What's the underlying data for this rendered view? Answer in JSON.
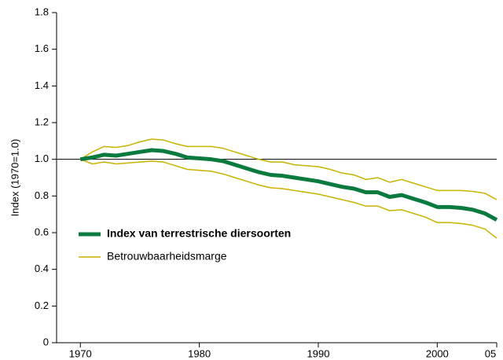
{
  "chart_data": {
    "type": "line",
    "ylabel": "Index (1970=1.0)",
    "x": [
      1970,
      1971,
      1972,
      1973,
      1974,
      1975,
      1976,
      1977,
      1978,
      1979,
      1980,
      1981,
      1982,
      1983,
      1984,
      1985,
      1986,
      1987,
      1988,
      1989,
      1990,
      1991,
      1992,
      1993,
      1994,
      1995,
      1996,
      1997,
      1998,
      1999,
      2000,
      2001,
      2002,
      2003,
      2004,
      2005
    ],
    "series": [
      {
        "name": "Index van terrestrische diersoorten",
        "color": "#0a7a3f",
        "values": [
          1.0,
          1.01,
          1.025,
          1.02,
          1.03,
          1.04,
          1.05,
          1.045,
          1.03,
          1.01,
          1.005,
          1.0,
          0.99,
          0.97,
          0.95,
          0.93,
          0.915,
          0.91,
          0.9,
          0.89,
          0.88,
          0.865,
          0.85,
          0.84,
          0.82,
          0.82,
          0.795,
          0.805,
          0.785,
          0.765,
          0.74,
          0.74,
          0.735,
          0.725,
          0.705,
          0.67
        ]
      }
    ],
    "confidence_band": {
      "name": "Betrouwbaarheidsmarge",
      "color": "#c9b200",
      "upper": [
        1.0,
        1.04,
        1.07,
        1.065,
        1.075,
        1.095,
        1.11,
        1.105,
        1.085,
        1.07,
        1.07,
        1.07,
        1.06,
        1.04,
        1.02,
        1.0,
        0.985,
        0.985,
        0.97,
        0.965,
        0.96,
        0.945,
        0.925,
        0.915,
        0.89,
        0.9,
        0.875,
        0.89,
        0.87,
        0.85,
        0.83,
        0.83,
        0.83,
        0.825,
        0.815,
        0.78
      ],
      "lower": [
        1.0,
        0.975,
        0.985,
        0.975,
        0.98,
        0.985,
        0.99,
        0.985,
        0.965,
        0.945,
        0.94,
        0.935,
        0.92,
        0.9,
        0.88,
        0.86,
        0.845,
        0.84,
        0.83,
        0.82,
        0.81,
        0.795,
        0.78,
        0.765,
        0.745,
        0.745,
        0.72,
        0.725,
        0.705,
        0.685,
        0.655,
        0.655,
        0.65,
        0.64,
        0.62,
        0.57
      ]
    },
    "reference_line": {
      "value": 1,
      "color": "#000000"
    },
    "xlim": [
      1968,
      2005
    ],
    "xticks": [
      1970,
      1980,
      1990,
      2000,
      {
        "value": 2005,
        "label": "05"
      }
    ],
    "ylim": [
      0,
      1.8
    ],
    "yticks": [
      0,
      0.2,
      0.4,
      0.6,
      0.8,
      {
        "value": 1,
        "label": "1.0"
      },
      1.2,
      1.4,
      1.6,
      1.8
    ]
  }
}
